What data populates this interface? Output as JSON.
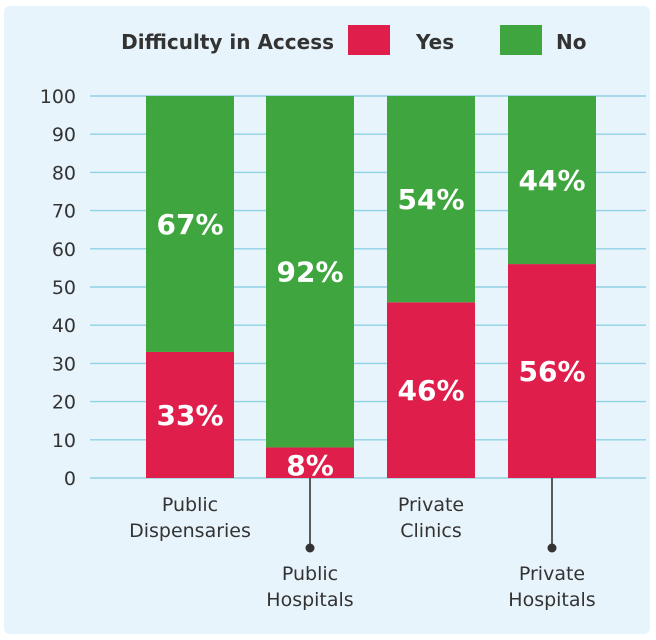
{
  "chart_data": {
    "type": "bar",
    "stacked": true,
    "legend_title": "Difficulty in Access",
    "legend_position": "top",
    "categories": [
      "Public Dispensaries",
      "Public Hospitals",
      "Private Clinics",
      "Private Hospitals"
    ],
    "category_lines": [
      [
        "Public",
        "Dispensaries"
      ],
      [
        "Public",
        "Hospitals"
      ],
      [
        "Private",
        "Clinics"
      ],
      [
        "Private",
        "Hospitals"
      ]
    ],
    "series": [
      {
        "name": "Yes",
        "color": "#e01e4c",
        "values": [
          33,
          8,
          46,
          56
        ],
        "labels": [
          "33%",
          "8%",
          "46%",
          "56%"
        ]
      },
      {
        "name": "No",
        "color": "#3fa63f",
        "values": [
          67,
          92,
          54,
          44
        ],
        "labels": [
          "67%",
          "92%",
          "54%",
          "44%"
        ]
      }
    ],
    "ylim": [
      0,
      100
    ],
    "yticks": [
      "0",
      "10",
      "20",
      "30",
      "40",
      "50",
      "60",
      "70",
      "80",
      "90",
      "100"
    ],
    "grid": true,
    "colors": {
      "grid": "#8fd2e6",
      "text": "#333333",
      "bar_label": "#ffffff"
    }
  }
}
